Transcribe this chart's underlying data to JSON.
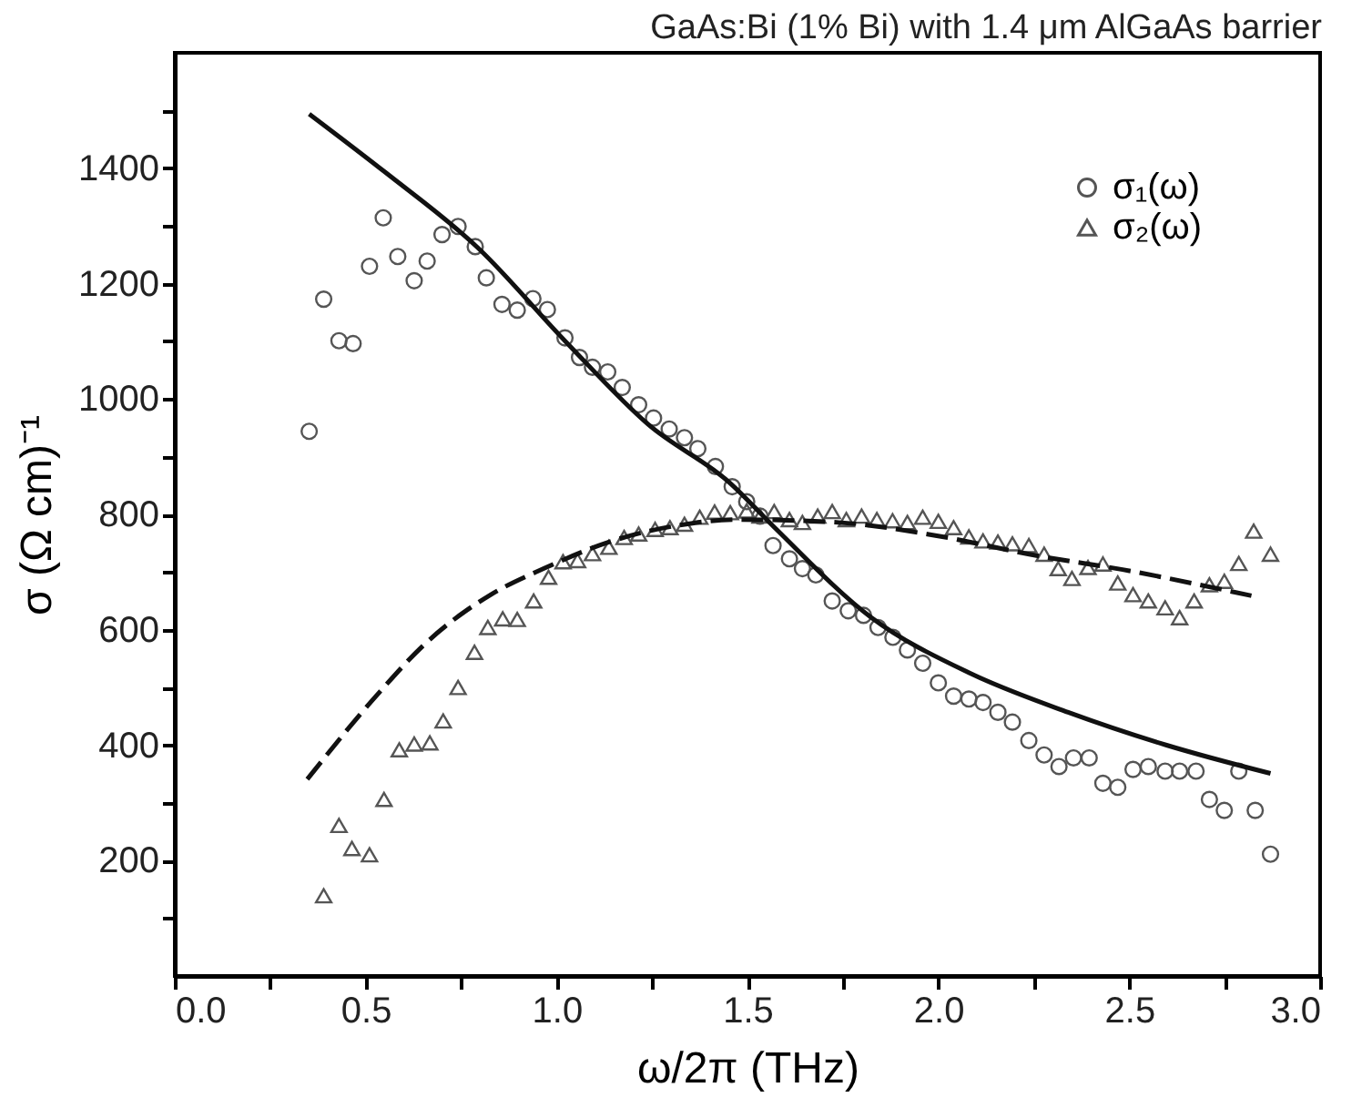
{
  "chart_data": {
    "type": "scatter",
    "title": "GaAs:Bi (1% Bi) with 1.4 μm AlGaAs barrier",
    "xlabel": "ω/2π (THz)",
    "ylabel": "σ (Ω cm)⁻¹",
    "xlim": [
      0,
      3
    ],
    "xticks": [
      {
        "value": 0,
        "label": "0.0"
      },
      {
        "value": 0.25,
        "label": null
      },
      {
        "value": 0.5,
        "label": "0.5"
      },
      {
        "value": 0.75,
        "label": null
      },
      {
        "value": 1,
        "label": "1.0"
      },
      {
        "value": 1.25,
        "label": null
      },
      {
        "value": 1.5,
        "label": "1.5"
      },
      {
        "value": 1.75,
        "label": null
      },
      {
        "value": 2,
        "label": "2.0"
      },
      {
        "value": 2.25,
        "label": null
      },
      {
        "value": 2.5,
        "label": "2.5"
      },
      {
        "value": 2.75,
        "label": null
      },
      {
        "value": 3,
        "label": "3.0"
      }
    ],
    "ylim": [
      0,
      1600
    ],
    "yticks": [
      {
        "value": 100,
        "label": null
      },
      200,
      {
        "value": 300,
        "label": null
      },
      400,
      {
        "value": 500,
        "label": null
      },
      600,
      {
        "value": 700,
        "label": null
      },
      800,
      {
        "value": 900,
        "label": null
      },
      1000,
      {
        "value": 1100,
        "label": null
      },
      1200,
      {
        "value": 1300,
        "label": null
      },
      1400,
      {
        "value": 1500,
        "label": null
      }
    ],
    "grid": false,
    "legend": "top right",
    "series": [
      {
        "name": "σ₁(ω)",
        "marker": "circle",
        "color": "#555555",
        "x": [
          0.352,
          0.39,
          0.43,
          0.467,
          0.51,
          0.546,
          0.584,
          0.627,
          0.661,
          0.7,
          0.742,
          0.787,
          0.816,
          0.857,
          0.897,
          0.938,
          0.976,
          1.022,
          1.06,
          1.094,
          1.134,
          1.172,
          1.215,
          1.254,
          1.295,
          1.335,
          1.37,
          1.416,
          1.46,
          1.498,
          1.533,
          1.567,
          1.61,
          1.644,
          1.679,
          1.722,
          1.764,
          1.804,
          1.842,
          1.881,
          1.919,
          1.959,
          2.0,
          2.04,
          2.08,
          2.117,
          2.156,
          2.194,
          2.237,
          2.277,
          2.316,
          2.354,
          2.395,
          2.431,
          2.47,
          2.51,
          2.55,
          2.594,
          2.632,
          2.675,
          2.71,
          2.749,
          2.787,
          2.83,
          2.87
        ],
        "values": [
          944,
          1173,
          1101,
          1096,
          1230,
          1314,
          1247,
          1205,
          1239,
          1285,
          1299,
          1264,
          1210,
          1164,
          1154,
          1174,
          1155,
          1106,
          1072,
          1055,
          1047,
          1020,
          990,
          967,
          948,
          933,
          914,
          883,
          848,
          822,
          797,
          746,
          723,
          706,
          695,
          650,
          633,
          625,
          604,
          587,
          565,
          542,
          508,
          485,
          480,
          474,
          457,
          440,
          408,
          383,
          363,
          378,
          378,
          334,
          327,
          358,
          363,
          355,
          355,
          355,
          306,
          287,
          355,
          287,
          211
        ]
      },
      {
        "name": "σ₂(ω)",
        "marker": "triangle",
        "color": "#555555",
        "x": [
          0.39,
          0.43,
          0.464,
          0.51,
          0.548,
          0.588,
          0.627,
          0.668,
          0.703,
          0.742,
          0.785,
          0.82,
          0.859,
          0.897,
          0.94,
          0.979,
          1.017,
          1.055,
          1.094,
          1.137,
          1.177,
          1.215,
          1.258,
          1.297,
          1.335,
          1.375,
          1.414,
          1.455,
          1.498,
          1.533,
          1.57,
          1.61,
          1.644,
          1.684,
          1.722,
          1.759,
          1.799,
          1.839,
          1.88,
          1.919,
          1.959,
          2.0,
          2.04,
          2.08,
          2.117,
          2.156,
          2.194,
          2.237,
          2.277,
          2.314,
          2.35,
          2.392,
          2.431,
          2.47,
          2.51,
          2.55,
          2.594,
          2.632,
          2.67,
          2.71,
          2.749,
          2.787,
          2.826,
          2.87
        ],
        "values": [
          139,
          261,
          221,
          210,
          306,
          392,
          402,
          404,
          442,
          500,
          561,
          604,
          619,
          618,
          650,
          691,
          718,
          720,
          732,
          743,
          760,
          766,
          774,
          777,
          783,
          795,
          804,
          803,
          806,
          797,
          805,
          791,
          786,
          797,
          805,
          791,
          797,
          791,
          789,
          786,
          795,
          788,
          777,
          761,
          754,
          752,
          749,
          746,
          731,
          706,
          689,
          708,
          714,
          681,
          661,
          650,
          638,
          621,
          650,
          678,
          684,
          715,
          771,
          731
        ]
      },
      {
        "type": "line",
        "line_style": "solid",
        "color": "#111111",
        "x": [
          0.352,
          0.553,
          0.794,
          1.026,
          1.24,
          1.455,
          1.567,
          1.825,
          2.082,
          2.34,
          2.598,
          2.87
        ],
        "values": [
          1494,
          1392,
          1262,
          1098,
          956,
          854,
          780,
          621,
          525,
          457,
          400,
          351
        ]
      },
      {
        "type": "line",
        "line_style": "dashed",
        "color": "#111111",
        "x": [
          0.347,
          0.527,
          0.656,
          0.828,
          0.966,
          1.137,
          1.309,
          1.481,
          1.739,
          1.996,
          2.254,
          2.51,
          2.684,
          2.82
        ],
        "values": [
          341,
          485,
          576,
          661,
          706,
          752,
          780,
          791,
          786,
          763,
          729,
          701,
          678,
          659
        ]
      }
    ]
  }
}
